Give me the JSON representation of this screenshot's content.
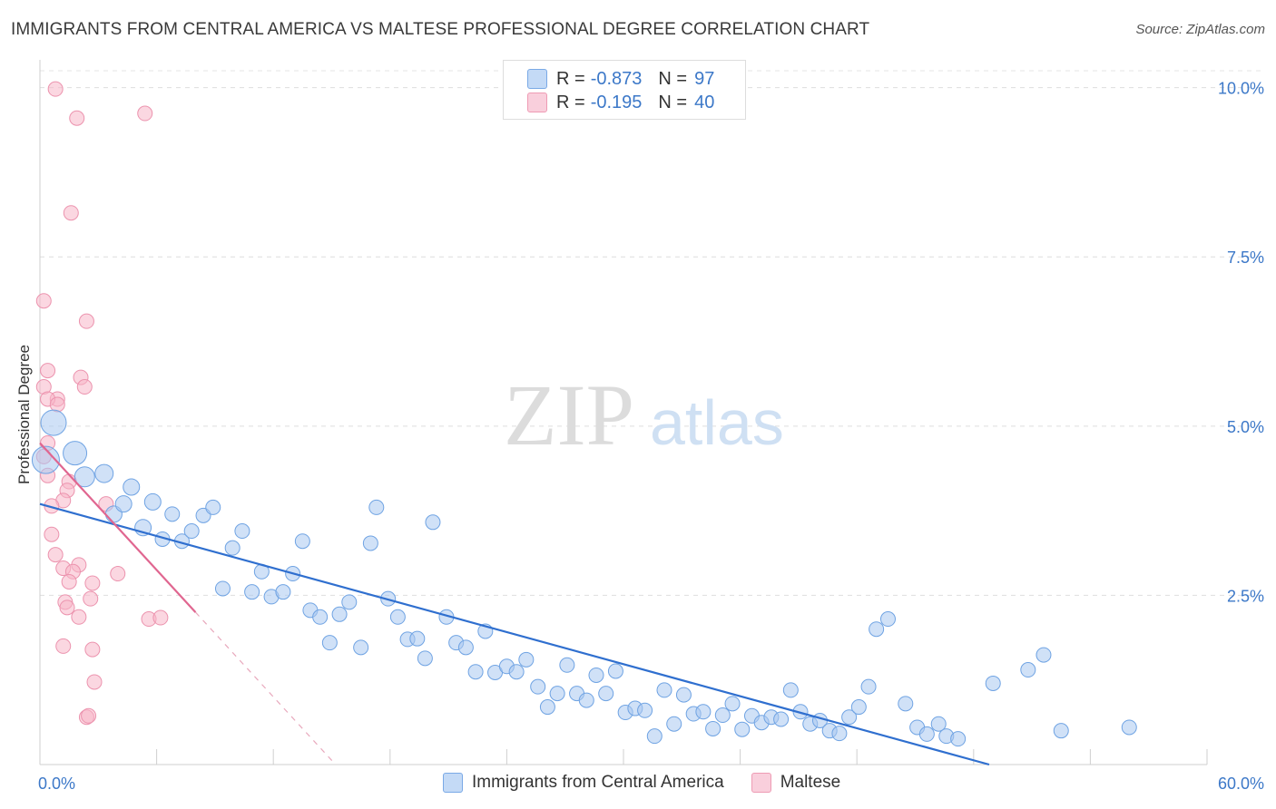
{
  "header": {
    "title": "IMMIGRANTS FROM CENTRAL AMERICA VS MALTESE PROFESSIONAL DEGREE CORRELATION CHART",
    "source": "Source: ZipAtlas.com"
  },
  "watermark": {
    "zip": "ZIP",
    "atlas": "atlas"
  },
  "legend": {
    "series1": {
      "r_label": "R =",
      "r_value": "-0.873",
      "n_label": "N =",
      "n_value": "97",
      "color": "#a9c8f0"
    },
    "series2": {
      "r_label": "R =",
      "r_value": "-0.195",
      "n_label": "N =",
      "n_value": "40",
      "color": "#f7b6c9"
    }
  },
  "bottom_legend": {
    "series1_label": "Immigrants from Central America",
    "series2_label": "Maltese"
  },
  "chart_data": {
    "type": "scatter",
    "title": "IMMIGRANTS FROM CENTRAL AMERICA VS MALTESE PROFESSIONAL DEGREE CORRELATION CHART",
    "xlabel": "",
    "ylabel": "Professional Degree",
    "xlim": [
      0,
      60
    ],
    "ylim": [
      0,
      10.25
    ],
    "x_tick_labels": [
      "0.0%",
      "60.0%"
    ],
    "y_ticks": [
      2.5,
      5.0,
      7.5,
      10.0
    ],
    "y_tick_labels": [
      "2.5%",
      "5.0%",
      "7.5%",
      "10.0%"
    ],
    "series": [
      {
        "name": "Immigrants from Central America",
        "color": "#a9c8f0",
        "stroke": "#6fa3e3",
        "trend": {
          "x": [
            0,
            48.8
          ],
          "y": [
            3.85,
            0.0
          ],
          "color": "#2f6fcf"
        },
        "points": [
          [
            0.3,
            4.5,
            1.5
          ],
          [
            0.7,
            5.05,
            1.4
          ],
          [
            1.8,
            4.6,
            1.3
          ],
          [
            2.3,
            4.25,
            1.1
          ],
          [
            3.3,
            4.3,
            1.0
          ],
          [
            3.8,
            3.7,
            0.9
          ],
          [
            4.3,
            3.85,
            0.9
          ],
          [
            4.7,
            4.1,
            0.9
          ],
          [
            5.3,
            3.5,
            0.9
          ],
          [
            5.8,
            3.88,
            0.9
          ],
          [
            6.3,
            3.33,
            0.8
          ],
          [
            6.8,
            3.7,
            0.8
          ],
          [
            7.3,
            3.3,
            0.8
          ],
          [
            7.8,
            3.45,
            0.8
          ],
          [
            8.4,
            3.68,
            0.8
          ],
          [
            8.9,
            3.8,
            0.8
          ],
          [
            9.4,
            2.6,
            0.8
          ],
          [
            9.9,
            3.2,
            0.8
          ],
          [
            10.4,
            3.45,
            0.8
          ],
          [
            10.9,
            2.55,
            0.8
          ],
          [
            11.4,
            2.85,
            0.8
          ],
          [
            11.9,
            2.48,
            0.8
          ],
          [
            12.5,
            2.55,
            0.8
          ],
          [
            13.0,
            2.82,
            0.8
          ],
          [
            13.5,
            3.3,
            0.8
          ],
          [
            13.9,
            2.28,
            0.8
          ],
          [
            14.4,
            2.18,
            0.8
          ],
          [
            14.9,
            1.8,
            0.8
          ],
          [
            15.4,
            2.22,
            0.8
          ],
          [
            15.9,
            2.4,
            0.8
          ],
          [
            16.5,
            1.73,
            0.8
          ],
          [
            17.0,
            3.27,
            0.8
          ],
          [
            17.3,
            3.8,
            0.8
          ],
          [
            17.9,
            2.45,
            0.8
          ],
          [
            18.4,
            2.18,
            0.8
          ],
          [
            18.9,
            1.85,
            0.8
          ],
          [
            19.4,
            1.86,
            0.8
          ],
          [
            19.8,
            1.57,
            0.8
          ],
          [
            20.2,
            3.58,
            0.8
          ],
          [
            20.9,
            2.18,
            0.8
          ],
          [
            21.4,
            1.8,
            0.8
          ],
          [
            21.9,
            1.73,
            0.8
          ],
          [
            22.4,
            1.37,
            0.8
          ],
          [
            22.9,
            1.97,
            0.8
          ],
          [
            23.4,
            1.36,
            0.8
          ],
          [
            24.0,
            1.45,
            0.8
          ],
          [
            24.5,
            1.37,
            0.8
          ],
          [
            25.0,
            1.55,
            0.8
          ],
          [
            25.6,
            1.15,
            0.8
          ],
          [
            26.1,
            0.85,
            0.8
          ],
          [
            26.6,
            1.05,
            0.8
          ],
          [
            27.1,
            1.47,
            0.8
          ],
          [
            27.6,
            1.05,
            0.8
          ],
          [
            28.1,
            0.95,
            0.8
          ],
          [
            28.6,
            1.32,
            0.8
          ],
          [
            29.1,
            1.05,
            0.8
          ],
          [
            29.6,
            1.38,
            0.8
          ],
          [
            30.1,
            0.77,
            0.8
          ],
          [
            30.6,
            0.83,
            0.8
          ],
          [
            31.1,
            0.8,
            0.8
          ],
          [
            31.6,
            0.42,
            0.8
          ],
          [
            32.1,
            1.1,
            0.8
          ],
          [
            32.6,
            0.6,
            0.8
          ],
          [
            33.1,
            1.03,
            0.8
          ],
          [
            33.6,
            0.75,
            0.8
          ],
          [
            34.1,
            0.78,
            0.8
          ],
          [
            34.6,
            0.53,
            0.8
          ],
          [
            35.1,
            0.73,
            0.8
          ],
          [
            35.6,
            0.9,
            0.8
          ],
          [
            36.1,
            0.52,
            0.8
          ],
          [
            36.6,
            0.72,
            0.8
          ],
          [
            37.1,
            0.62,
            0.8
          ],
          [
            37.6,
            0.7,
            0.8
          ],
          [
            38.1,
            0.67,
            0.8
          ],
          [
            38.6,
            1.1,
            0.8
          ],
          [
            39.1,
            0.78,
            0.8
          ],
          [
            39.6,
            0.6,
            0.8
          ],
          [
            40.1,
            0.65,
            0.8
          ],
          [
            40.6,
            0.5,
            0.8
          ],
          [
            41.1,
            0.46,
            0.8
          ],
          [
            41.6,
            0.7,
            0.8
          ],
          [
            42.1,
            0.85,
            0.8
          ],
          [
            42.6,
            1.15,
            0.8
          ],
          [
            43.0,
            2.0,
            0.8
          ],
          [
            43.6,
            2.15,
            0.8
          ],
          [
            44.5,
            0.9,
            0.8
          ],
          [
            45.1,
            0.55,
            0.8
          ],
          [
            45.6,
            0.45,
            0.8
          ],
          [
            46.2,
            0.6,
            0.8
          ],
          [
            46.6,
            0.42,
            0.8
          ],
          [
            47.2,
            0.38,
            0.8
          ],
          [
            49.0,
            1.2,
            0.8
          ],
          [
            50.8,
            1.4,
            0.8
          ],
          [
            51.6,
            1.62,
            0.8
          ],
          [
            52.5,
            0.5,
            0.8
          ],
          [
            56.0,
            0.55,
            0.8
          ]
        ]
      },
      {
        "name": "Maltese",
        "color": "#f7b6c9",
        "stroke": "#ec93ae",
        "trend": {
          "x": [
            0,
            8.0
          ],
          "y": [
            4.75,
            2.25
          ],
          "color": "#e06690"
        },
        "trend_dashed": {
          "x": [
            8.0,
            15.2
          ],
          "y": [
            2.25,
            0.0
          ],
          "color": "#e8a8bc"
        },
        "points": [
          [
            0.8,
            9.98
          ],
          [
            1.9,
            9.55
          ],
          [
            5.4,
            9.62
          ],
          [
            1.6,
            8.15
          ],
          [
            0.2,
            6.85
          ],
          [
            2.4,
            6.55
          ],
          [
            0.4,
            5.82
          ],
          [
            2.1,
            5.72
          ],
          [
            2.3,
            5.58
          ],
          [
            0.2,
            5.58
          ],
          [
            0.9,
            5.4
          ],
          [
            0.4,
            5.4
          ],
          [
            0.9,
            5.32
          ],
          [
            0.4,
            4.75
          ],
          [
            0.2,
            4.55
          ],
          [
            0.4,
            4.27
          ],
          [
            1.5,
            4.18
          ],
          [
            1.4,
            4.05
          ],
          [
            1.2,
            3.9
          ],
          [
            0.6,
            3.82
          ],
          [
            3.4,
            3.85
          ],
          [
            0.6,
            3.4
          ],
          [
            0.8,
            3.1
          ],
          [
            2.0,
            2.95
          ],
          [
            1.2,
            2.9
          ],
          [
            1.7,
            2.85
          ],
          [
            4.0,
            2.82
          ],
          [
            1.5,
            2.7
          ],
          [
            2.7,
            2.68
          ],
          [
            1.3,
            2.4
          ],
          [
            2.6,
            2.45
          ],
          [
            1.4,
            2.32
          ],
          [
            2.0,
            2.18
          ],
          [
            5.6,
            2.15
          ],
          [
            6.2,
            2.17
          ],
          [
            1.2,
            1.75
          ],
          [
            2.7,
            1.7
          ],
          [
            2.8,
            1.22
          ],
          [
            2.4,
            0.7
          ],
          [
            2.5,
            0.72
          ]
        ]
      }
    ]
  }
}
